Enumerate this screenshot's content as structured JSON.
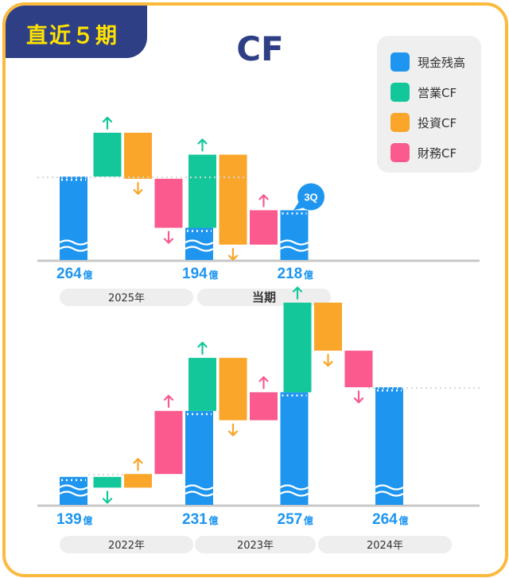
{
  "badge": "直近５期",
  "title": "CF",
  "colors": {
    "cash": "#1E96F0",
    "operating": "#14C79B",
    "investing": "#F9A62A",
    "financing": "#FA5A8E",
    "badge_bg": "#2F3F86",
    "badge_text": "#FFE300",
    "title": "#2F3F86",
    "border": "#FBBA3E",
    "value_text": "#1E96F0"
  },
  "legend": [
    {
      "label": "現金残高",
      "color": "#1E96F0"
    },
    {
      "label": "営業CF",
      "color": "#14C79B"
    },
    {
      "label": "投資CF",
      "color": "#F9A62A"
    },
    {
      "label": "財務CF",
      "color": "#FA5A8E"
    }
  ],
  "chart_data": [
    {
      "type": "bar",
      "subtype": "waterfall",
      "unit": "億",
      "balances": [
        {
          "label": "264",
          "value": 264
        },
        {
          "label": "194",
          "value": 194
        },
        {
          "label": "218",
          "value": 218
        }
      ],
      "flows": [
        {
          "period": "2025年",
          "operating": 60,
          "investing": -63,
          "financing": -67
        },
        {
          "period": "当期",
          "operating": 100,
          "investing": -123,
          "financing": 47,
          "badge": "3Q"
        }
      ],
      "periods": [
        "2025年",
        "当期"
      ],
      "y_range": [
        150,
        330
      ]
    },
    {
      "type": "bar",
      "subtype": "waterfall",
      "unit": "億",
      "balances": [
        {
          "label": "139",
          "value": 139
        },
        {
          "label": "231",
          "value": 231
        },
        {
          "label": "257",
          "value": 257
        },
        {
          "label": "264",
          "value": 264
        }
      ],
      "flows": [
        {
          "period": "2022年",
          "operating": -15,
          "investing": 19,
          "financing": 88
        },
        {
          "period": "2023年",
          "operating": 74,
          "investing": -87,
          "financing": 39
        },
        {
          "period": "2024年",
          "operating": 125,
          "investing": -67,
          "financing": -51
        }
      ],
      "periods": [
        "2022年",
        "2023年",
        "2024年"
      ],
      "y_range": [
        100,
        335
      ]
    }
  ]
}
